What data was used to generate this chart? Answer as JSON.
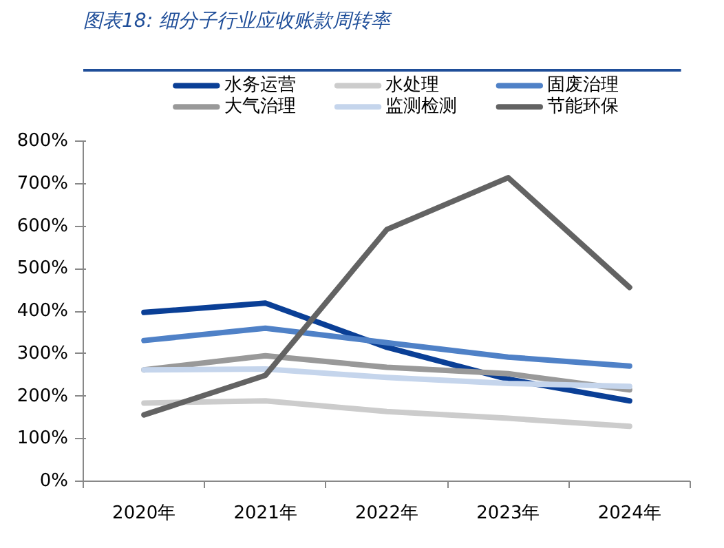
{
  "chart_data": {
    "type": "line",
    "title": "图表18:  细分子行业应收账款周转率",
    "categories": [
      "2020年",
      "2021年",
      "2022年",
      "2023年",
      "2024年"
    ],
    "series": [
      {
        "name": "水务运营",
        "color": "#0a3f96",
        "values": [
          397,
          419,
          315,
          240,
          189
        ]
      },
      {
        "name": "水处理",
        "color": "#cccccc",
        "values": [
          184,
          189,
          164,
          148,
          129
        ]
      },
      {
        "name": "固废治理",
        "color": "#4f81c7",
        "values": [
          331,
          360,
          326,
          292,
          271
        ]
      },
      {
        "name": "大气治理",
        "color": "#999999",
        "values": [
          262,
          295,
          268,
          253,
          215
        ]
      },
      {
        "name": "监测检测",
        "color": "#c5d5ec",
        "values": [
          262,
          264,
          244,
          230,
          223
        ]
      },
      {
        "name": "节能环保",
        "color": "#636363",
        "values": [
          156,
          249,
          592,
          714,
          456
        ]
      }
    ],
    "ylim": [
      0,
      800
    ],
    "yticks": [
      {
        "value": 0,
        "label": "0%"
      },
      {
        "value": 100,
        "label": "100%"
      },
      {
        "value": 200,
        "label": "200%"
      },
      {
        "value": 300,
        "label": "300%"
      },
      {
        "value": 400,
        "label": "400%"
      },
      {
        "value": 500,
        "label": "500%"
      },
      {
        "value": 600,
        "label": "600%"
      },
      {
        "value": 700,
        "label": "700%"
      },
      {
        "value": 800,
        "label": "800%"
      }
    ],
    "grid": false,
    "legend": "top",
    "marker": "none",
    "line_style": "solid"
  }
}
